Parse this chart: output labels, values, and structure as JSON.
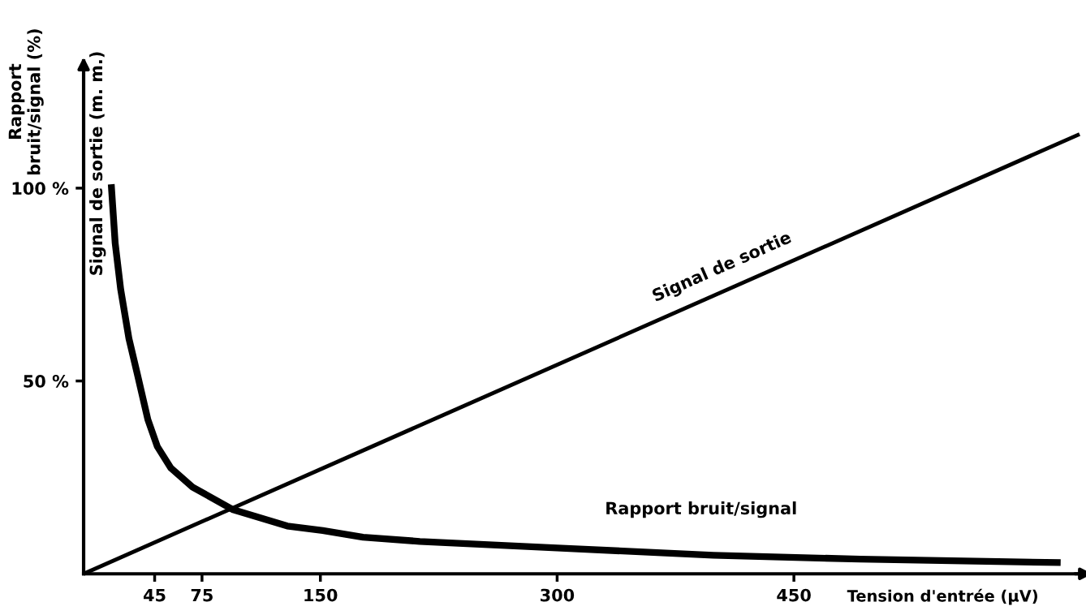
{
  "chart_data": {
    "type": "line",
    "xlabel": "Tension d'entrée (µV)",
    "ylabel": "Rapport\nbruit/signal (%)",
    "xlim": [
      0,
      633
    ],
    "ylim": [
      0,
      133
    ],
    "xticks": [
      45,
      75,
      150,
      300,
      450
    ],
    "yticks": [
      {
        "value": 50,
        "label": "50 %"
      },
      {
        "value": 100,
        "label": "100 %"
      }
    ],
    "grid": false,
    "legend": false,
    "marker": "none",
    "line_style": "solid",
    "series": [
      {
        "color": "#000000",
        "x": [
          17.5,
          20,
          23.5,
          28.7,
          33.9,
          40.7,
          46.7,
          55.3,
          69,
          94.8,
          129,
          151.5,
          177,
          213,
          300,
          399,
          492,
          619
        ],
        "values": [
          101,
          85.7,
          73.7,
          61,
          52,
          40,
          33,
          27.4,
          22.5,
          16.6,
          12.4,
          11.2,
          9.5,
          8.4,
          6.7,
          4.8,
          3.8,
          2.9
        ]
      },
      {
        "color": "#000000",
        "x": [
          0,
          631
        ],
        "values": [
          0,
          114
        ]
      }
    ],
    "annotations": [
      "Signal de sortie (m. m.)",
      "Signal de sortie",
      "Rapport bruit/signal"
    ]
  }
}
